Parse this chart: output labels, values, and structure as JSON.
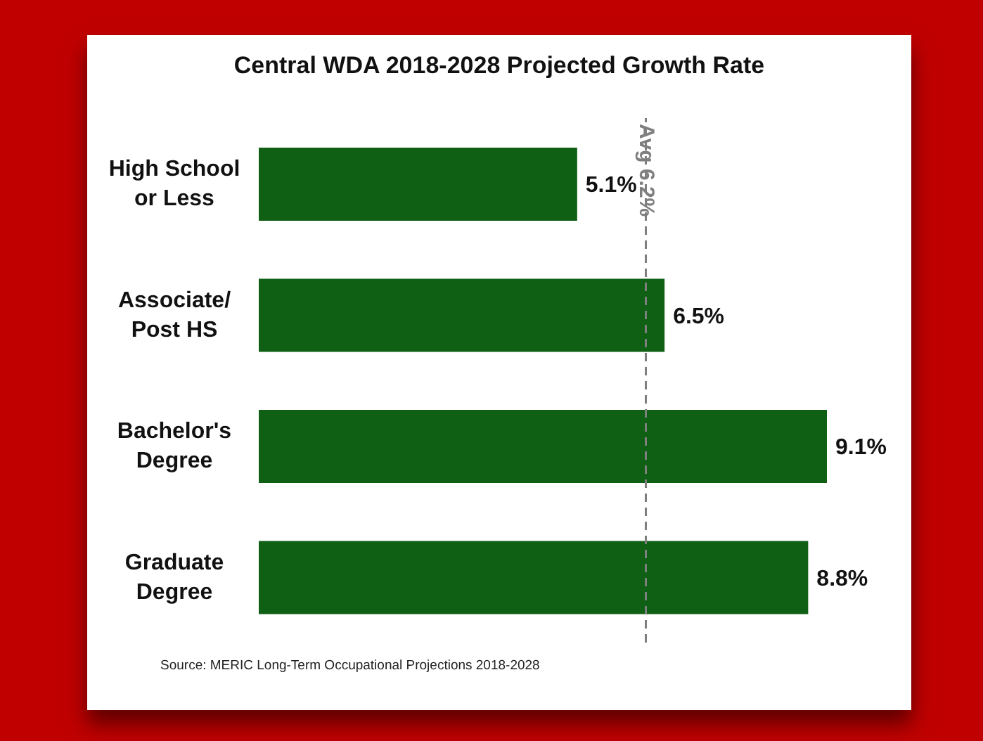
{
  "chart_data": {
    "type": "bar",
    "orientation": "horizontal",
    "title": "Central WDA 2018-2028 Projected Growth Rate",
    "categories": [
      "High School or Less",
      "Associate/ Post HS",
      "Bachelor's Degree",
      "Graduate Degree"
    ],
    "values": [
      5.1,
      6.5,
      9.1,
      8.8
    ],
    "value_labels": [
      "5.1%",
      "6.5%",
      "9.1%",
      "8.8%"
    ],
    "color": "#0f5f14",
    "ref_lines": [
      {
        "axis": "x",
        "value": 6.2,
        "label": "Avg 6.2%",
        "color": "#7f7f7f",
        "line_style": "dashed"
      }
    ],
    "annotations": [
      "Source: MERIC Long-Term Occupational Projections 2018-2028"
    ],
    "grid": false,
    "legend": false
  }
}
